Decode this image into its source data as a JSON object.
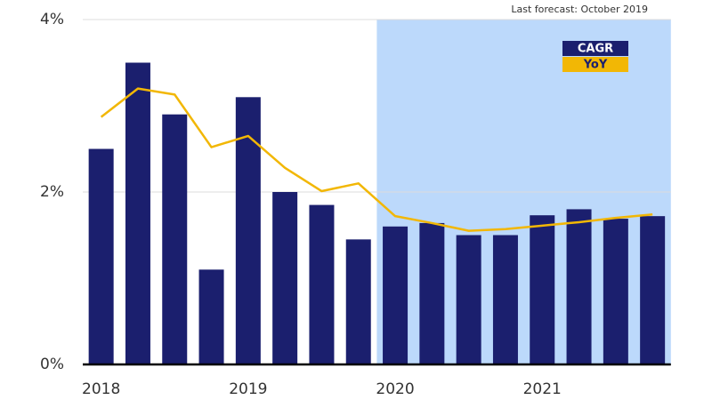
{
  "chart_data": {
    "type": "bar",
    "annotation": "Last forecast: October 2019",
    "categories": [
      "2018",
      null,
      null,
      null,
      "2019",
      null,
      null,
      null,
      "2020",
      null,
      null,
      null,
      "2021",
      null,
      null,
      null
    ],
    "series": [
      {
        "name": "CAGR",
        "type": "bar",
        "color": "#1b1f6e",
        "values": [
          2.5,
          3.5,
          2.9,
          1.1,
          3.1,
          2.0,
          1.85,
          1.45,
          1.6,
          1.64,
          1.5,
          1.5,
          1.73,
          1.8,
          1.69,
          1.72
        ]
      },
      {
        "name": "YoY",
        "type": "line",
        "color": "#f2b705",
        "values": [
          2.87,
          3.2,
          3.13,
          2.52,
          2.65,
          2.28,
          2.01,
          2.1,
          1.72,
          1.64,
          1.55,
          1.57,
          1.61,
          1.65,
          1.7,
          1.74
        ]
      }
    ],
    "ylim": [
      0,
      4
    ],
    "yticks": [
      {
        "value": 0,
        "label": "0%"
      },
      {
        "value": 2,
        "label": "2%"
      },
      {
        "value": 4,
        "label": "4%"
      }
    ],
    "grid": true,
    "legend": "upper right",
    "shade": {
      "from_index": 8,
      "color": "#bcd9fb"
    }
  }
}
